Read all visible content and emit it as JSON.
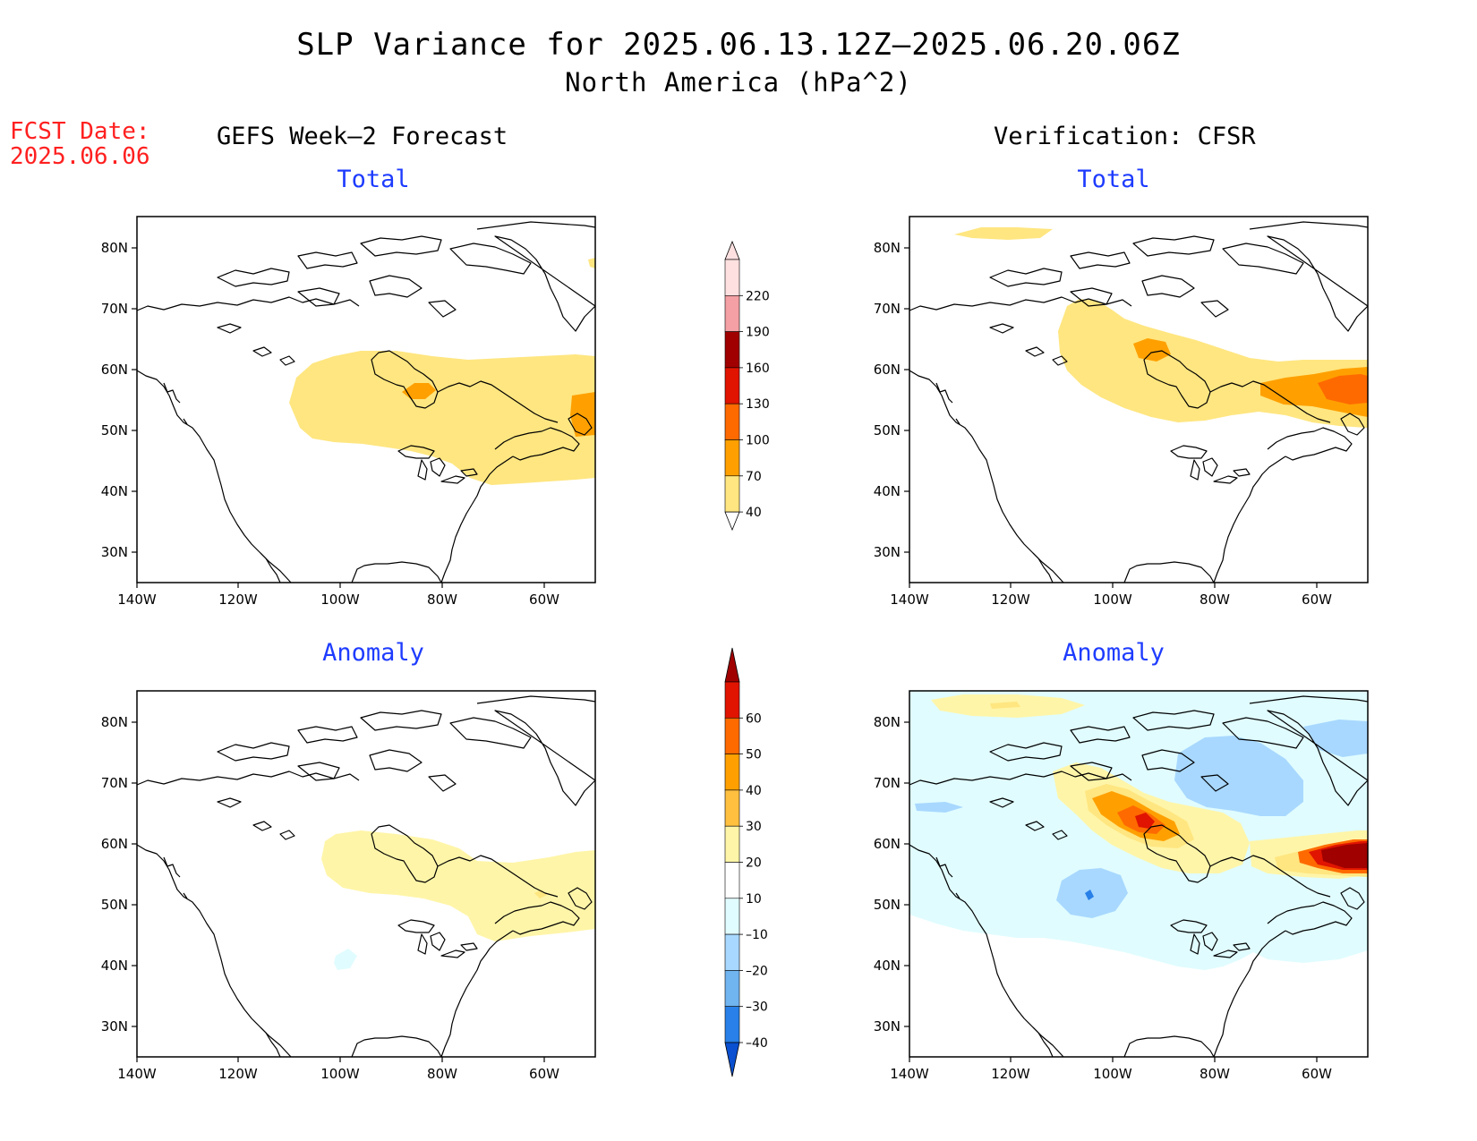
{
  "header": {
    "title": "SLP Variance for 2025.06.13.12Z–2025.06.20.06Z",
    "subtitle": "North America (hPa^2)"
  },
  "fcst": {
    "line1": "FCST Date:",
    "line2": "2025.06.06"
  },
  "columns": {
    "left": "GEFS Week–2 Forecast",
    "right": "Verification: CFSR"
  },
  "panels": {
    "top_left": {
      "title": "Total"
    },
    "top_right": {
      "title": "Total"
    },
    "bot_left": {
      "title": "Anomaly"
    },
    "bot_right": {
      "title": "Anomaly"
    }
  },
  "axes": {
    "lon_ticks": [
      "140W",
      "120W",
      "100W",
      "80W",
      "60W"
    ],
    "lat_ticks": [
      "80N",
      "70N",
      "60N",
      "50N",
      "40N",
      "30N"
    ]
  },
  "colorbar_total": {
    "levels": [
      "220",
      "190",
      "160",
      "130",
      "100",
      "70",
      "40"
    ],
    "colors": [
      "#ffe0e0",
      "#f4a0a4",
      "#a00000",
      "#e01400",
      "#ff6a00",
      "#ffa000",
      "#ffe680"
    ]
  },
  "colorbar_anomaly": {
    "levels": [
      "60",
      "50",
      "40",
      "30",
      "20",
      "10",
      "–10",
      "–20",
      "–30",
      "–40"
    ],
    "colors": [
      "#a00000",
      "#e01400",
      "#ff6a00",
      "#ffa000",
      "#ffc040",
      "#fff5a8",
      "#ffffff",
      "#e0fcff",
      "#a8d8ff",
      "#70b4f0",
      "#2880e8",
      "#0a50d0"
    ]
  },
  "shading": {
    "total_yellow": "#ffe680",
    "total_orange": "#ffa000",
    "total_darkorange": "#ff6a00",
    "anom_lightyellow": "#fff5a8",
    "anom_yellow": "#ffe680",
    "anom_orange": "#ffa000",
    "anom_darkorange": "#ff6a00",
    "anom_red": "#e01400",
    "anom_darkred": "#a00000",
    "anom_lightcyan": "#e0fcff",
    "anom_lightblue": "#a8d8ff",
    "anom_blue": "#70b4f0",
    "anom_darkblue": "#2880e8"
  }
}
